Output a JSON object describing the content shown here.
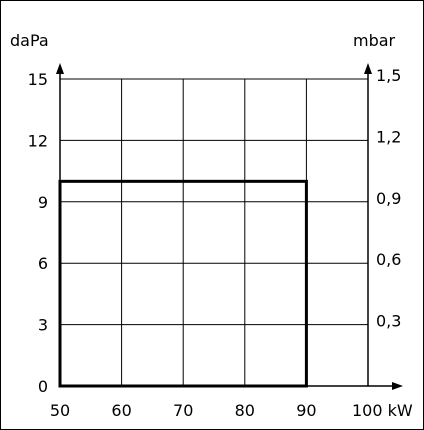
{
  "chart_data": {
    "type": "area",
    "left_axis_unit": "daPa",
    "right_axis_unit": "mbar",
    "x_unit": "kW",
    "x_ticks": [
      50,
      60,
      70,
      80,
      90,
      100
    ],
    "y_ticks": [
      0,
      3,
      6,
      9,
      12,
      15
    ],
    "y2_ticks": [
      "0,3",
      "0,6",
      "0,9",
      "1,2",
      "1,5"
    ],
    "xlim": [
      50,
      100
    ],
    "ylim": [
      0,
      15
    ],
    "grid": true,
    "region": {
      "x_min": 50,
      "x_max": 90,
      "y_min": 0,
      "y_max": 10
    }
  },
  "colors": {
    "line": "#000000",
    "background": "#ffffff"
  }
}
